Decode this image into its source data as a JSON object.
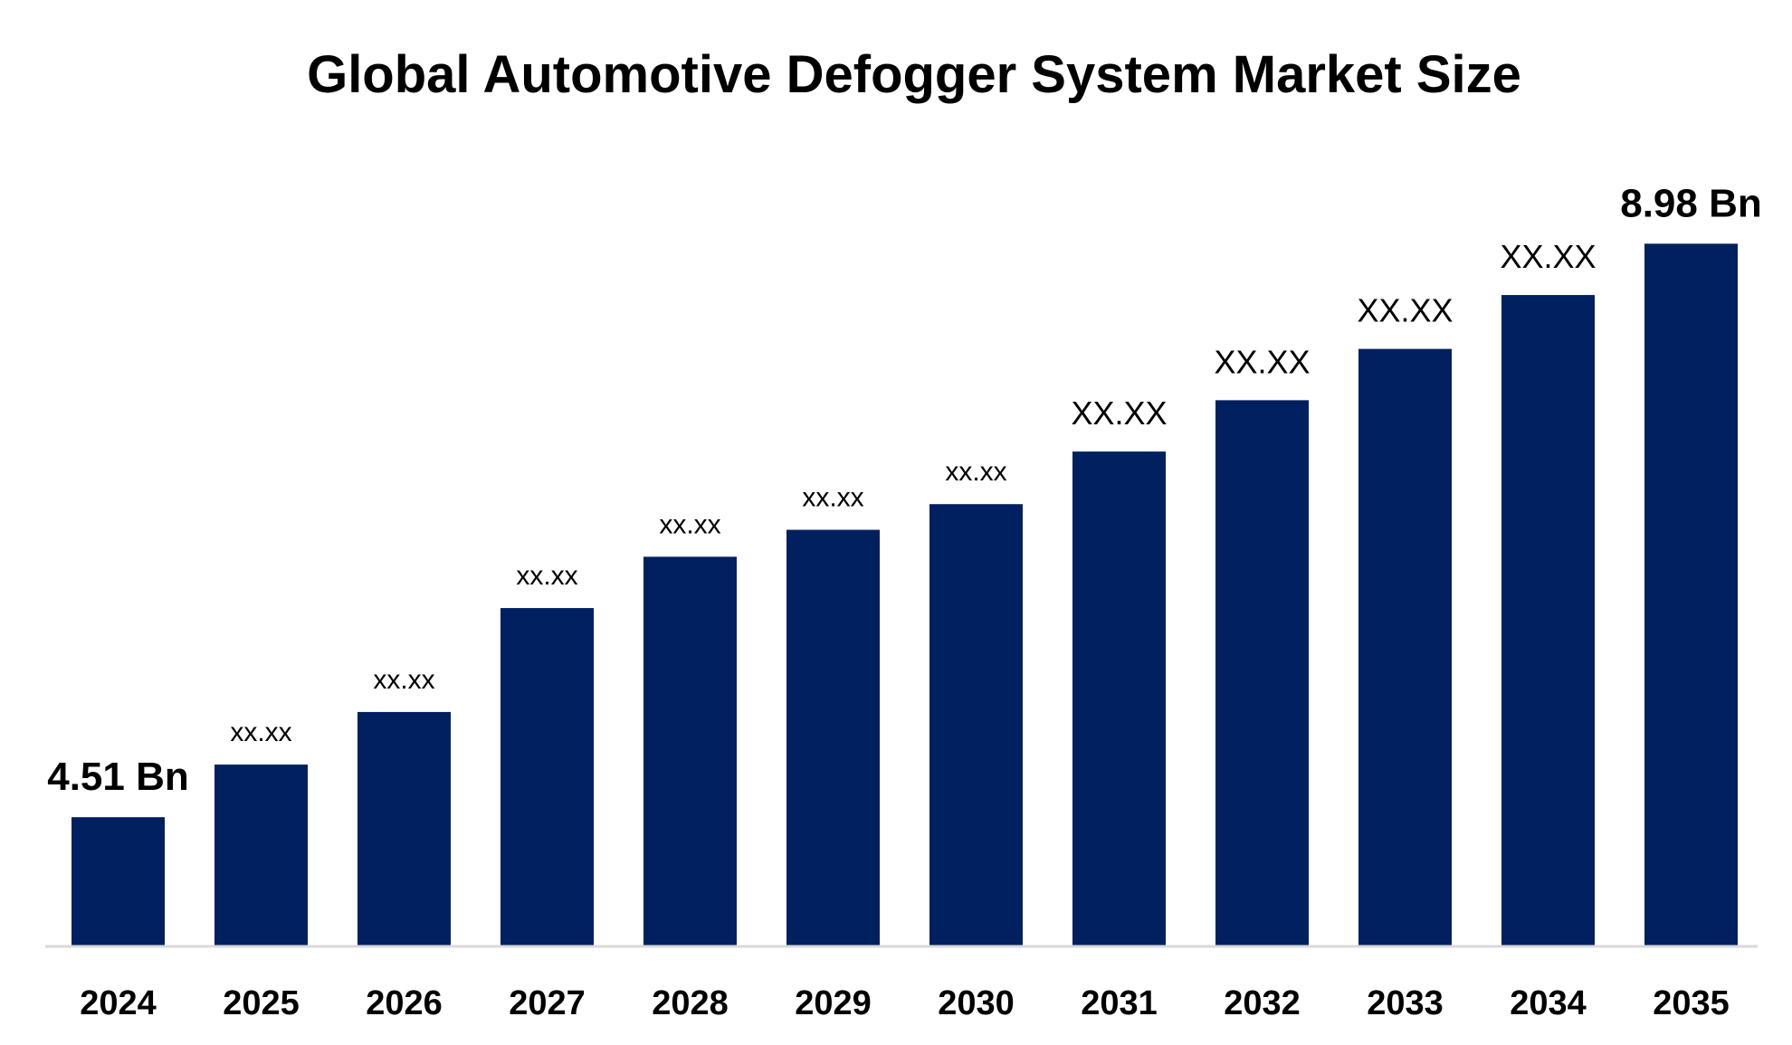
{
  "chart_data": {
    "type": "bar",
    "title": "Global Automotive Defogger System Market Size",
    "xlabel": "",
    "ylabel": "",
    "categories": [
      "2024",
      "2025",
      "2026",
      "2027",
      "2028",
      "2029",
      "2030",
      "2031",
      "2032",
      "2033",
      "2034",
      "2035"
    ],
    "values": [
      4.51,
      4.92,
      5.33,
      6.14,
      6.54,
      6.75,
      6.95,
      7.36,
      7.76,
      8.16,
      8.58,
      8.98
    ],
    "data_labels": [
      "4.51 Bn",
      "xx.xx",
      "xx.xx",
      "xx.xx",
      "xx.xx",
      "xx.xx",
      "xx.xx",
      "XX.XX",
      "XX.XX",
      "XX.XX",
      "XX.XX",
      "8.98 Bn"
    ],
    "ylim": [
      3.51,
      9.5
    ],
    "grid": false,
    "legend": "none",
    "bar_color": "#002060",
    "axis_color": "#d9d9d9"
  }
}
